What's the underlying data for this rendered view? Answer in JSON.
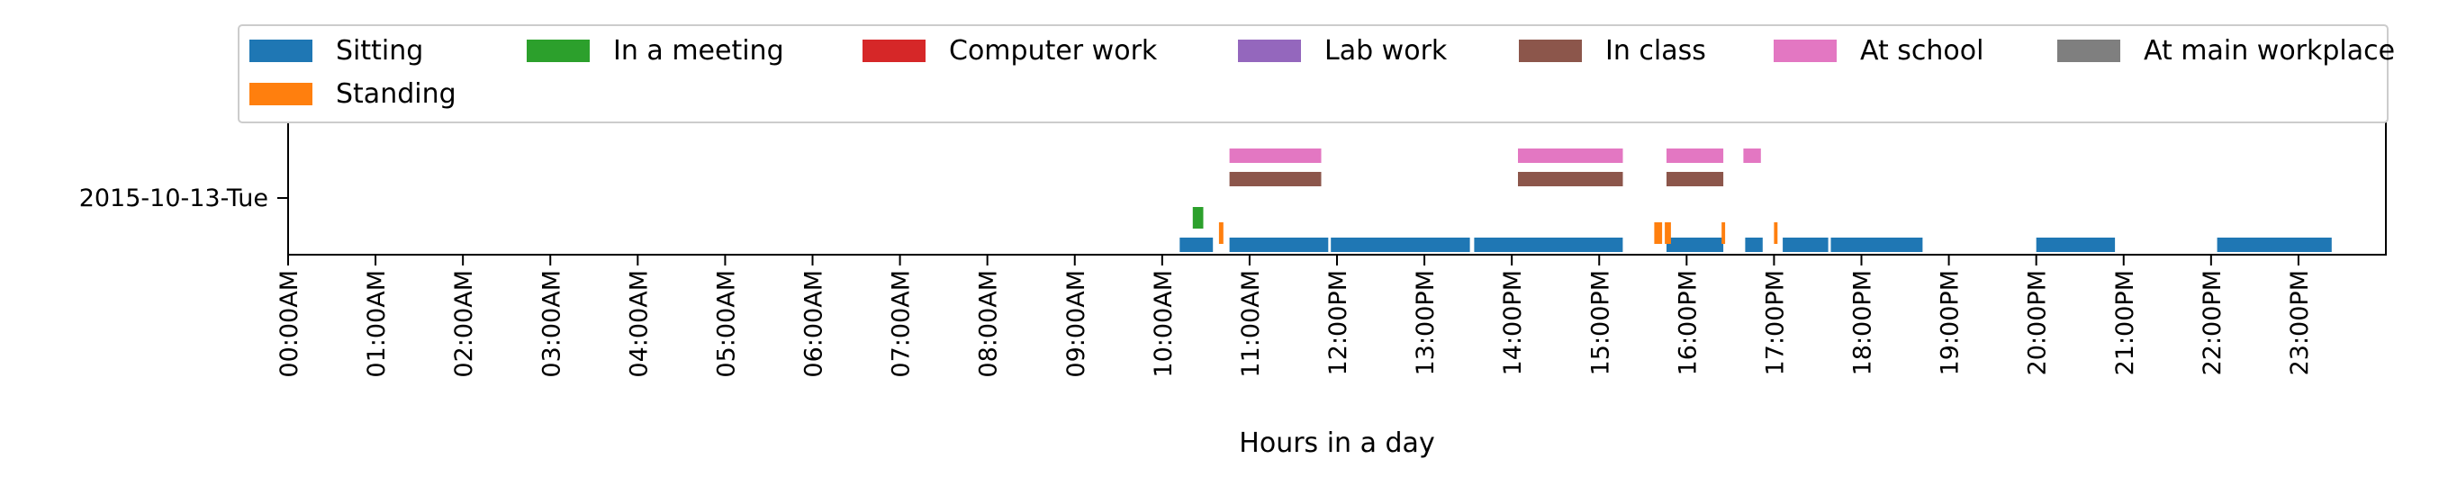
{
  "chart_data": {
    "type": "timeline",
    "title": "",
    "xlabel": "Hours in a day",
    "ylabel": "",
    "xlim": [
      0,
      24
    ],
    "y_category": "2015-10-13-Tue",
    "x_ticks": [
      {
        "value": 0,
        "label": "00:00AM"
      },
      {
        "value": 1,
        "label": "01:00AM"
      },
      {
        "value": 2,
        "label": "02:00AM"
      },
      {
        "value": 3,
        "label": "03:00AM"
      },
      {
        "value": 4,
        "label": "04:00AM"
      },
      {
        "value": 5,
        "label": "05:00AM"
      },
      {
        "value": 6,
        "label": "06:00AM"
      },
      {
        "value": 7,
        "label": "07:00AM"
      },
      {
        "value": 8,
        "label": "08:00AM"
      },
      {
        "value": 9,
        "label": "09:00AM"
      },
      {
        "value": 10,
        "label": "10:00AM"
      },
      {
        "value": 11,
        "label": "11:00AM"
      },
      {
        "value": 12,
        "label": "12:00PM"
      },
      {
        "value": 13,
        "label": "13:00PM"
      },
      {
        "value": 14,
        "label": "14:00PM"
      },
      {
        "value": 15,
        "label": "15:00PM"
      },
      {
        "value": 16,
        "label": "16:00PM"
      },
      {
        "value": 17,
        "label": "17:00PM"
      },
      {
        "value": 18,
        "label": "18:00PM"
      },
      {
        "value": 19,
        "label": "19:00PM"
      },
      {
        "value": 20,
        "label": "20:00PM"
      },
      {
        "value": 21,
        "label": "21:00PM"
      },
      {
        "value": 22,
        "label": "22:00PM"
      },
      {
        "value": 23,
        "label": "23:00PM"
      }
    ],
    "legend_position": "top",
    "legend_columns": 7,
    "series": [
      {
        "name": "Sitting",
        "color": "#1f77b4",
        "lane": 0,
        "intervals": [
          [
            10.2,
            10.58
          ],
          [
            10.77,
            11.9
          ],
          [
            11.93,
            13.52
          ],
          [
            13.57,
            15.27
          ],
          [
            15.77,
            16.42
          ],
          [
            16.67,
            16.87
          ],
          [
            17.1,
            17.62
          ],
          [
            17.65,
            18.7
          ],
          [
            20.0,
            20.9
          ],
          [
            22.07,
            23.38
          ]
        ]
      },
      {
        "name": "Standing",
        "color": "#ff7f0e",
        "lane": 0.5,
        "intervals": [
          [
            10.65,
            10.7
          ],
          [
            15.63,
            15.72
          ],
          [
            15.75,
            15.82
          ],
          [
            16.4,
            16.44
          ],
          [
            17.0,
            17.04
          ]
        ]
      },
      {
        "name": "In a meeting",
        "color": "#2ca02c",
        "lane": 1,
        "intervals": [
          [
            10.35,
            10.47
          ]
        ]
      },
      {
        "name": "Computer work",
        "color": "#d62728",
        "lane": 2,
        "intervals": []
      },
      {
        "name": "Lab work",
        "color": "#9467bd",
        "lane": 3,
        "intervals": []
      },
      {
        "name": "In class",
        "color": "#8c564b",
        "lane": 4,
        "intervals": [
          [
            10.77,
            11.82
          ],
          [
            14.07,
            15.27
          ],
          [
            15.77,
            16.42
          ]
        ]
      },
      {
        "name": "At school",
        "color": "#e377c2",
        "lane": 5,
        "intervals": [
          [
            10.77,
            11.82
          ],
          [
            14.07,
            15.27
          ],
          [
            15.77,
            16.42
          ],
          [
            16.65,
            16.85
          ]
        ]
      },
      {
        "name": "At main workplace",
        "color": "#7f7f7f",
        "lane": 6,
        "intervals": []
      }
    ]
  }
}
